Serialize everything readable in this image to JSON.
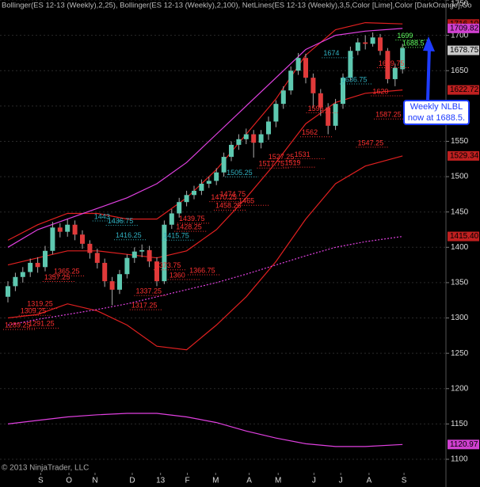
{
  "chart_data": {
    "type": "candlestick",
    "title": "Bollinger(ES 12-13 (Weekly),2,25), Bollinger(ES 12-13 (Weekly),2,100), NetLines(ES 12-13 (Weekly),3,5,Color [Lime],Color [DarkOrange],Co",
    "footer": "© 2013 NinjaTrader, LLC",
    "xlim": [
      -1,
      57
    ],
    "xticks": [
      {
        "value": 4.4,
        "label": "S"
      },
      {
        "value": 8.2,
        "label": "O"
      },
      {
        "value": 11.7,
        "label": "N"
      },
      {
        "value": 16.7,
        "label": "D"
      },
      {
        "value": 20.5,
        "label": "13"
      },
      {
        "value": 24.1,
        "label": "F"
      },
      {
        "value": 27.9,
        "label": "M"
      },
      {
        "value": 32.4,
        "label": "A"
      },
      {
        "value": 36.3,
        "label": "M"
      },
      {
        "value": 41.1,
        "label": "J"
      },
      {
        "value": 44.7,
        "label": "J"
      },
      {
        "value": 48.5,
        "label": "A"
      },
      {
        "value": 53.2,
        "label": "S"
      }
    ],
    "ylim": [
      1100,
      1750
    ],
    "yticks": [
      1100,
      1150,
      1200,
      1250,
      1300,
      1350,
      1400,
      1450,
      1500,
      1550,
      1600,
      1650,
      1700,
      1750
    ],
    "grid": true,
    "up_color": "#5ec8b0",
    "down_color": "#e03a3a",
    "x": [
      0,
      1,
      2,
      3,
      4,
      5,
      6,
      7,
      8,
      9,
      10,
      11,
      12,
      13,
      14,
      15,
      16,
      17,
      18,
      19,
      20,
      21,
      22,
      23,
      24,
      25,
      26,
      27,
      28,
      29,
      30,
      31,
      32,
      33,
      34,
      35,
      36,
      37,
      38,
      39,
      40,
      41,
      42,
      43,
      44,
      45,
      46,
      47,
      48,
      49,
      50,
      51,
      52,
      53
    ],
    "open": [
      1330,
      1345,
      1358,
      1365,
      1378,
      1372,
      1395,
      1428,
      1422,
      1432,
      1418,
      1405,
      1392,
      1378,
      1352,
      1340,
      1362,
      1385,
      1394,
      1396,
      1380,
      1352,
      1432,
      1448,
      1464,
      1474,
      1480,
      1490,
      1494,
      1506,
      1528,
      1545,
      1553,
      1560,
      1548,
      1560,
      1578,
      1603,
      1622,
      1650,
      1668,
      1640,
      1618,
      1598,
      1572,
      1603,
      1640,
      1678,
      1690,
      1688,
      1697,
      1678,
      1638,
      1652
    ],
    "high": [
      1352,
      1364,
      1372,
      1384,
      1386,
      1402,
      1436,
      1434,
      1440,
      1438,
      1424,
      1410,
      1398,
      1384,
      1358,
      1368,
      1390,
      1400,
      1404,
      1402,
      1386,
      1438,
      1454,
      1470,
      1480,
      1487,
      1496,
      1500,
      1512,
      1534,
      1550,
      1560,
      1568,
      1566,
      1566,
      1585,
      1608,
      1628,
      1656,
      1675,
      1674,
      1646,
      1624,
      1604,
      1610,
      1646,
      1684,
      1696,
      1700,
      1704,
      1702,
      1682,
      1660,
      1688
    ],
    "low": [
      1322,
      1338,
      1350,
      1358,
      1364,
      1366,
      1390,
      1414,
      1415,
      1410,
      1398,
      1384,
      1370,
      1344,
      1318,
      1334,
      1356,
      1378,
      1386,
      1372,
      1345,
      1348,
      1426,
      1442,
      1458,
      1468,
      1474,
      1484,
      1488,
      1500,
      1522,
      1538,
      1546,
      1527,
      1540,
      1552,
      1570,
      1596,
      1616,
      1644,
      1632,
      1598,
      1586,
      1560,
      1566,
      1596,
      1636,
      1672,
      1680,
      1684,
      1672,
      1632,
      1628,
      1646
    ],
    "close": [
      1345,
      1358,
      1365,
      1378,
      1372,
      1395,
      1428,
      1422,
      1432,
      1418,
      1405,
      1392,
      1378,
      1352,
      1340,
      1362,
      1385,
      1394,
      1396,
      1380,
      1352,
      1432,
      1448,
      1464,
      1474,
      1480,
      1490,
      1494,
      1506,
      1528,
      1545,
      1553,
      1560,
      1548,
      1560,
      1578,
      1603,
      1622,
      1650,
      1668,
      1640,
      1618,
      1598,
      1572,
      1603,
      1640,
      1678,
      1690,
      1688,
      1697,
      1678,
      1638,
      1654,
      1682
    ],
    "series": [
      {
        "name": "Bollinger 25 upper",
        "color": "#e02020",
        "x": [
          0,
          4,
          8,
          12,
          16,
          20,
          24,
          28,
          32,
          36,
          40,
          44,
          48,
          53
        ],
        "values": [
          1410,
          1432,
          1448,
          1448,
          1440,
          1440,
          1470,
          1510,
          1560,
          1610,
          1672,
          1708,
          1718,
          1716.1
        ]
      },
      {
        "name": "Bollinger 25 middle",
        "color": "#e02020",
        "x": [
          0,
          4,
          8,
          12,
          16,
          20,
          24,
          28,
          32,
          36,
          40,
          44,
          48,
          53
        ],
        "values": [
          1375,
          1385,
          1395,
          1395,
          1390,
          1385,
          1395,
          1425,
          1470,
          1520,
          1575,
          1605,
          1618,
          1622.72
        ]
      },
      {
        "name": "Bollinger 25 lower",
        "color": "#e02020",
        "x": [
          0,
          4,
          8,
          12,
          16,
          20,
          24,
          28,
          32,
          36,
          40,
          44,
          48,
          53
        ],
        "values": [
          1300,
          1305,
          1320,
          1310,
          1290,
          1260,
          1255,
          1290,
          1330,
          1380,
          1440,
          1490,
          1515,
          1529.34
        ]
      },
      {
        "name": "Bollinger 100 upper",
        "color": "#e040e0",
        "x": [
          0,
          4,
          8,
          12,
          16,
          20,
          24,
          28,
          32,
          36,
          40,
          44,
          48,
          53
        ],
        "values": [
          1400,
          1425,
          1440,
          1455,
          1470,
          1490,
          1520,
          1560,
          1600,
          1640,
          1680,
          1700,
          1706,
          1709.82
        ]
      },
      {
        "name": "Bollinger 100 middle",
        "color": "#e040e0",
        "dashed": true,
        "x": [
          0,
          4,
          8,
          12,
          16,
          20,
          24,
          28,
          32,
          36,
          40,
          44,
          48,
          53
        ],
        "values": [
          1290,
          1298,
          1305,
          1312,
          1320,
          1330,
          1340,
          1350,
          1362,
          1375,
          1388,
          1400,
          1408,
          1415.4
        ]
      },
      {
        "name": "Bollinger 100 lower",
        "color": "#e040e0",
        "x": [
          0,
          4,
          8,
          12,
          16,
          20,
          24,
          28,
          32,
          36,
          40,
          44,
          48,
          53
        ],
        "values": [
          1150,
          1155,
          1160,
          1163,
          1165,
          1165,
          1160,
          1152,
          1140,
          1130,
          1122,
          1118,
          1118,
          1120.97
        ]
      }
    ],
    "price_tags": [
      {
        "value": 1716.1,
        "label": "1716.10",
        "color": "#b01818"
      },
      {
        "value": 1709.82,
        "label": "1709.82",
        "color": "#d040d0"
      },
      {
        "value": 1678.75,
        "label": "1678.75",
        "color": "#c8c8c8"
      },
      {
        "value": 1622.72,
        "label": "1622.72",
        "color": "#c02020"
      },
      {
        "value": 1529.34,
        "label": "1529.34",
        "color": "#c02020"
      },
      {
        "value": 1415.4,
        "label": "1415.40",
        "color": "#c02020"
      },
      {
        "value": 1120.97,
        "label": "1120.97",
        "color": "#d040d0"
      }
    ],
    "net_lines": [
      {
        "value": 1674,
        "week": 42.8,
        "color": "#30b0c0"
      },
      {
        "value": 1636.75,
        "week": 45.2,
        "color": "#30b0c0"
      },
      {
        "value": 1505.25,
        "week": 29.8,
        "color": "#30b0c0"
      },
      {
        "value": 1443,
        "week": 12,
        "color": "#30b0c0"
      },
      {
        "value": 1436.75,
        "week": 13.8,
        "color": "#30b0c0"
      },
      {
        "value": 1415.75,
        "week": 21.3,
        "color": "#30b0c0"
      },
      {
        "value": 1416.25,
        "week": 14.9,
        "color": "#30b0c0"
      },
      {
        "value": 1659.75,
        "week": 50.2,
        "color": "#ff3030"
      },
      {
        "value": 1620,
        "week": 49.4,
        "color": "#ff3030"
      },
      {
        "value": 1596,
        "week": 40.7,
        "color": "#ff3030"
      },
      {
        "value": 1587.25,
        "week": 49.8,
        "color": "#ff3030"
      },
      {
        "value": 1562,
        "week": 39.9,
        "color": "#ff3030"
      },
      {
        "value": 1547.25,
        "week": 47.4,
        "color": "#ff3030"
      },
      {
        "value": 1531,
        "week": 38.9,
        "color": "#ff3030"
      },
      {
        "value": 1527.25,
        "week": 35.4,
        "color": "#ff3030"
      },
      {
        "value": 1517.75,
        "week": 34.1,
        "color": "#ff3030"
      },
      {
        "value": 1519,
        "week": 37.6,
        "color": "#ff3030"
      },
      {
        "value": 1470.25,
        "week": 27.7,
        "color": "#ff3030"
      },
      {
        "value": 1474.75,
        "week": 28.9,
        "color": "#ff3030"
      },
      {
        "value": 1465,
        "week": 31.4,
        "color": "#ff3030"
      },
      {
        "value": 1458.25,
        "week": 28.3,
        "color": "#ff3030"
      },
      {
        "value": 1439.75,
        "week": 23.4,
        "color": "#ff3030"
      },
      {
        "value": 1428.25,
        "week": 23,
        "color": "#ff3030"
      },
      {
        "value": 1373.75,
        "week": 20.2,
        "color": "#ff3030"
      },
      {
        "value": 1366.75,
        "week": 24.8,
        "color": "#ff3030"
      },
      {
        "value": 1360,
        "week": 22.1,
        "color": "#ff3030"
      },
      {
        "value": 1365.25,
        "week": 6.6,
        "color": "#ff3030"
      },
      {
        "value": 1357.25,
        "week": 5.3,
        "color": "#ff3030"
      },
      {
        "value": 1337.25,
        "week": 17.6,
        "color": "#ff3030"
      },
      {
        "value": 1319.25,
        "week": 3,
        "color": "#ff3030"
      },
      {
        "value": 1317.25,
        "week": 17,
        "color": "#ff3030"
      },
      {
        "value": 1309.25,
        "week": 2.1,
        "color": "#ff3030"
      },
      {
        "value": 1291.25,
        "week": 3.2,
        "color": "#ff3030"
      },
      {
        "value": 1289.25,
        "week": 0,
        "color": "#ff3030"
      },
      {
        "value": 1699,
        "week": 52.7,
        "color": "#60ff60"
      },
      {
        "value": 1688.5,
        "week": 53.4,
        "color": "#60ff60"
      }
    ],
    "callout": {
      "lines": [
        "Weekly NLBL",
        "now at 1688.5."
      ]
    }
  }
}
